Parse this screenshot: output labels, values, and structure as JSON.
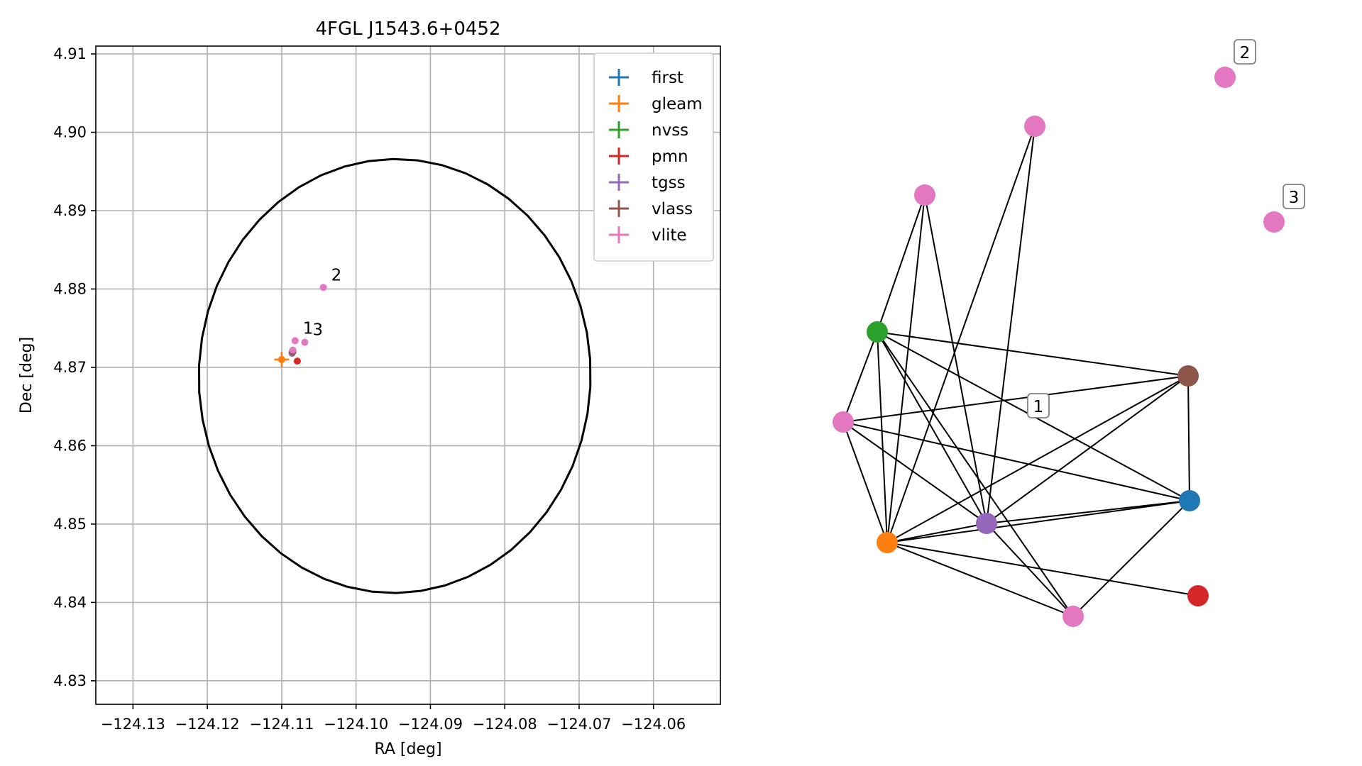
{
  "chart_data": [
    {
      "type": "scatter",
      "title": "4FGL J1543.6+0452",
      "xlabel": "RA [deg]",
      "ylabel": "Dec [deg]",
      "xlim": [
        -124.135,
        -124.051
      ],
      "ylim": [
        4.827,
        4.911
      ],
      "x_ticks": [
        -124.13,
        -124.12,
        -124.11,
        -124.1,
        -124.09,
        -124.08,
        -124.07,
        -124.06
      ],
      "x_tick_labels": [
        "−124.13",
        "−124.12",
        "−124.11",
        "−124.10",
        "−124.09",
        "−124.08",
        "−124.07",
        "−124.06"
      ],
      "y_ticks": [
        4.83,
        4.84,
        4.85,
        4.86,
        4.87,
        4.88,
        4.89,
        4.9,
        4.91
      ],
      "y_tick_labels": [
        "4.83",
        "4.84",
        "4.85",
        "4.86",
        "4.87",
        "4.88",
        "4.89",
        "4.90",
        "4.91"
      ],
      "grid": true,
      "legend_position": "top-right",
      "ellipse": {
        "center_ra": -124.0948,
        "center_dec": 4.8689,
        "width_deg": 0.0527,
        "height_deg": 0.0554,
        "angle_deg": -3,
        "color": "#000000"
      },
      "series": [
        {
          "name": "first",
          "color": "#1f77b4",
          "points": [
            {
              "ra": -124.1085,
              "dec": 4.872,
              "err_ra": 0.0002,
              "err_dec": 0.0002
            }
          ]
        },
        {
          "name": "gleam",
          "color": "#ff7f0e",
          "points": [
            {
              "ra": -124.11,
              "dec": 4.871,
              "err_ra": 0.001,
              "err_dec": 0.001
            }
          ]
        },
        {
          "name": "nvss",
          "color": "#2ca02c",
          "points": [
            {
              "ra": -124.1086,
              "dec": 4.8719,
              "err_ra": 0.0003,
              "err_dec": 0.0003
            }
          ]
        },
        {
          "name": "pmn",
          "color": "#d62728",
          "points": [
            {
              "ra": -124.1079,
              "dec": 4.8708,
              "err_ra": 0.0001,
              "err_dec": 0.0001
            }
          ]
        },
        {
          "name": "tgss",
          "color": "#9467bd",
          "points": [
            {
              "ra": -124.1086,
              "dec": 4.8718,
              "err_ra": 0.0004,
              "err_dec": 0.0004
            }
          ]
        },
        {
          "name": "vlass",
          "color": "#8c564b",
          "points": [
            {
              "ra": -124.1085,
              "dec": 4.872,
              "err_ra": 0.0001,
              "err_dec": 0.0001
            }
          ]
        },
        {
          "name": "vlite",
          "color": "#e377c2",
          "points": [
            {
              "ra": -124.1085,
              "dec": 4.8722,
              "err_ra": 0.0003,
              "err_dec": 0.0003,
              "label": ""
            },
            {
              "ra": -124.1082,
              "dec": 4.8734,
              "err_ra": 0.0001,
              "err_dec": 0.0001,
              "label": "1"
            },
            {
              "ra": -124.1044,
              "dec": 4.8802,
              "err_ra": 0.0001,
              "err_dec": 0.0001,
              "label": "2"
            },
            {
              "ra": -124.1069,
              "dec": 4.8732,
              "err_ra": 0.0001,
              "err_dec": 0.0001,
              "label": "3"
            }
          ]
        }
      ]
    },
    {
      "type": "network",
      "title": "",
      "nodes": [
        {
          "id": "first",
          "color": "#1f77b4",
          "label": ""
        },
        {
          "id": "gleam",
          "color": "#ff7f0e",
          "label": ""
        },
        {
          "id": "nvss",
          "color": "#2ca02c",
          "label": ""
        },
        {
          "id": "pmn",
          "color": "#d62728",
          "label": ""
        },
        {
          "id": "tgss",
          "color": "#9467bd",
          "label": ""
        },
        {
          "id": "vlass",
          "color": "#8c564b",
          "label": ""
        },
        {
          "id": "vlite_a",
          "color": "#e377c2",
          "label": ""
        },
        {
          "id": "vlite_b",
          "color": "#e377c2",
          "label": ""
        },
        {
          "id": "vlite_c",
          "color": "#e377c2",
          "label": ""
        },
        {
          "id": "vlite_d",
          "color": "#e377c2",
          "label": ""
        },
        {
          "id": "vlite_2",
          "color": "#e377c2",
          "label": "2"
        },
        {
          "id": "vlite_3",
          "color": "#e377c2",
          "label": "3"
        }
      ],
      "edges": [
        [
          "vlite_b",
          "nvss"
        ],
        [
          "vlite_b",
          "gleam"
        ],
        [
          "vlite_b",
          "tgss"
        ],
        [
          "vlite_a",
          "gleam"
        ],
        [
          "vlite_a",
          "tgss"
        ],
        [
          "nvss",
          "vlite_c"
        ],
        [
          "nvss",
          "gleam"
        ],
        [
          "nvss",
          "tgss"
        ],
        [
          "nvss",
          "vlite_d"
        ],
        [
          "nvss",
          "vlass"
        ],
        [
          "nvss",
          "first"
        ],
        [
          "vlite_c",
          "vlass"
        ],
        [
          "vlite_c",
          "first"
        ],
        [
          "vlite_c",
          "gleam"
        ],
        [
          "vlite_c",
          "tgss"
        ],
        [
          "gleam",
          "tgss"
        ],
        [
          "gleam",
          "vlass"
        ],
        [
          "gleam",
          "first"
        ],
        [
          "gleam",
          "pmn"
        ],
        [
          "gleam",
          "vlite_d"
        ],
        [
          "tgss",
          "first"
        ],
        [
          "tgss",
          "vlass"
        ],
        [
          "tgss",
          "vlite_d"
        ],
        [
          "vlass",
          "first"
        ],
        [
          "first",
          "vlite_d"
        ]
      ],
      "floating_labels": [
        {
          "text": "1",
          "near": "between vlite_c and vlass"
        }
      ]
    }
  ]
}
